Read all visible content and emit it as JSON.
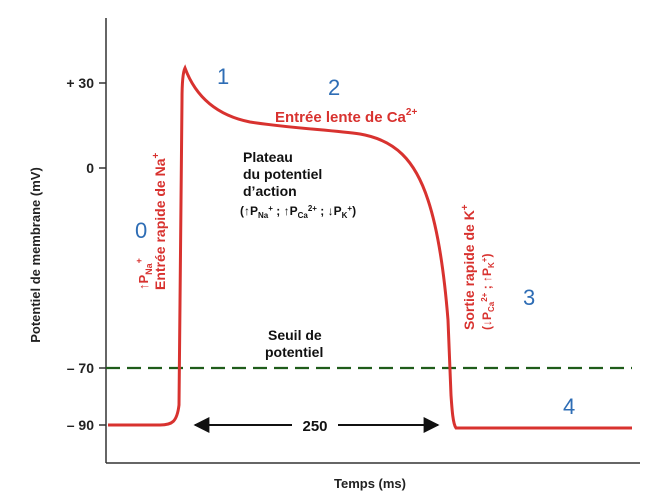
{
  "axes": {
    "y_title": "Potentiel de membrane (mV)",
    "x_title": "Temps (ms)",
    "y_ticks": [
      "+ 30",
      "0",
      "– 70",
      "– 90"
    ]
  },
  "phases": [
    "0",
    "1",
    "2",
    "3",
    "4"
  ],
  "labels": {
    "calcium": "Entrée lente de Ca",
    "calcium_sup": "2+",
    "sodium_line1": "Entrée rapide de Na",
    "sodium_line1_sup": "+",
    "sodium_line2": "↑P",
    "sodium_line2_sub": "Na",
    "sodium_line2_sup": "+",
    "plateau_line1": "Plateau",
    "plateau_line2": "du potentiel",
    "plateau_line3": "d’action",
    "plateau_line4": "(↑P",
    "plateau_na": "Na",
    "plateau_plus": "+",
    "plateau_sep1": " ; ↑P",
    "plateau_ca": "Ca",
    "plateau_2plus": "2+",
    "plateau_sep2": " ; ↓P",
    "plateau_k": "K",
    "plateau_end": ")",
    "potassium_line1": "Sortie rapide de K",
    "potassium_line1_sup": "+",
    "potassium_line2": "(↓P",
    "potassium_ca": "Ca",
    "potassium_2plus": "2+",
    "potassium_sep": " ; ↑P",
    "potassium_k": "K",
    "potassium_end": ")",
    "threshold_line1": "Seuil de",
    "threshold_line2": "potentiel",
    "duration": "250"
  },
  "colors": {
    "curve": "#d8322f",
    "threshold": "#1f5c1a",
    "phase_numbers": "#2e6db5",
    "axes": "#333333"
  }
}
